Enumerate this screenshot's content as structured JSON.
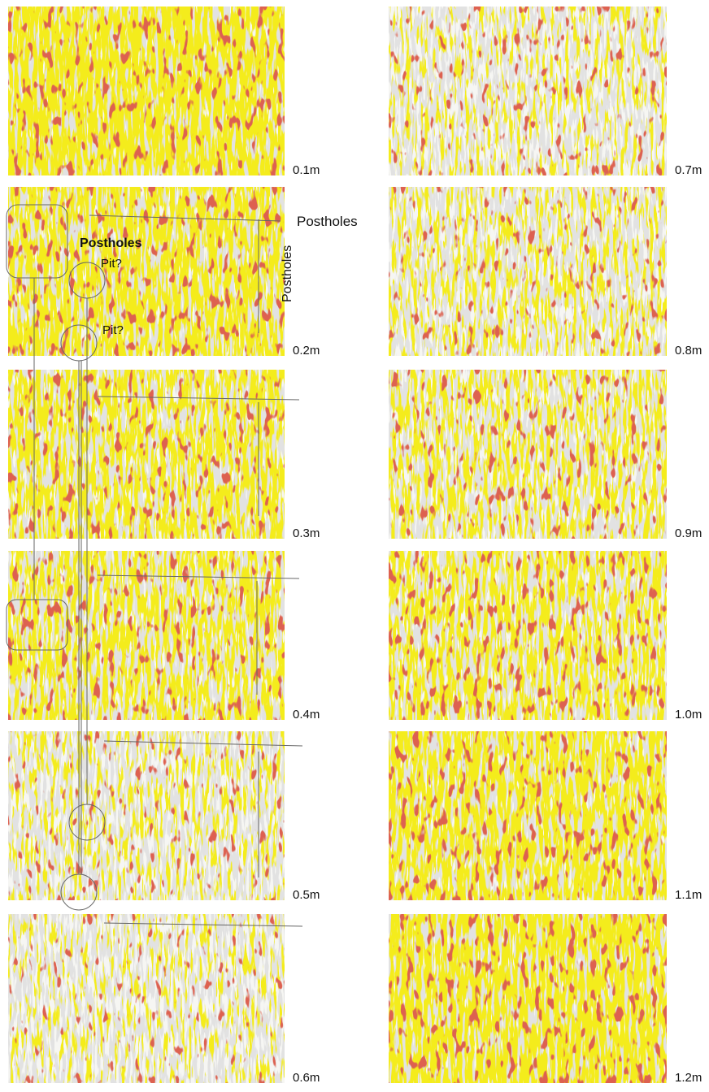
{
  "panels": [
    {
      "depth": "0.1m"
    },
    {
      "depth": "0.2m"
    },
    {
      "depth": "0.3m"
    },
    {
      "depth": "0.4m"
    },
    {
      "depth": "0.5m"
    },
    {
      "depth": "0.6m"
    },
    {
      "depth": "0.7m"
    },
    {
      "depth": "0.8m"
    },
    {
      "depth": "0.9m"
    },
    {
      "depth": "1.0m"
    },
    {
      "depth": "1.1m"
    },
    {
      "depth": "1.2m"
    }
  ],
  "annotations": {
    "postholes_right": "Postholes",
    "postholes_bold": "Postholes",
    "postholes_vertical": "Postholes",
    "pit_upper": "Pit?",
    "pit_lower": "Pit?"
  }
}
